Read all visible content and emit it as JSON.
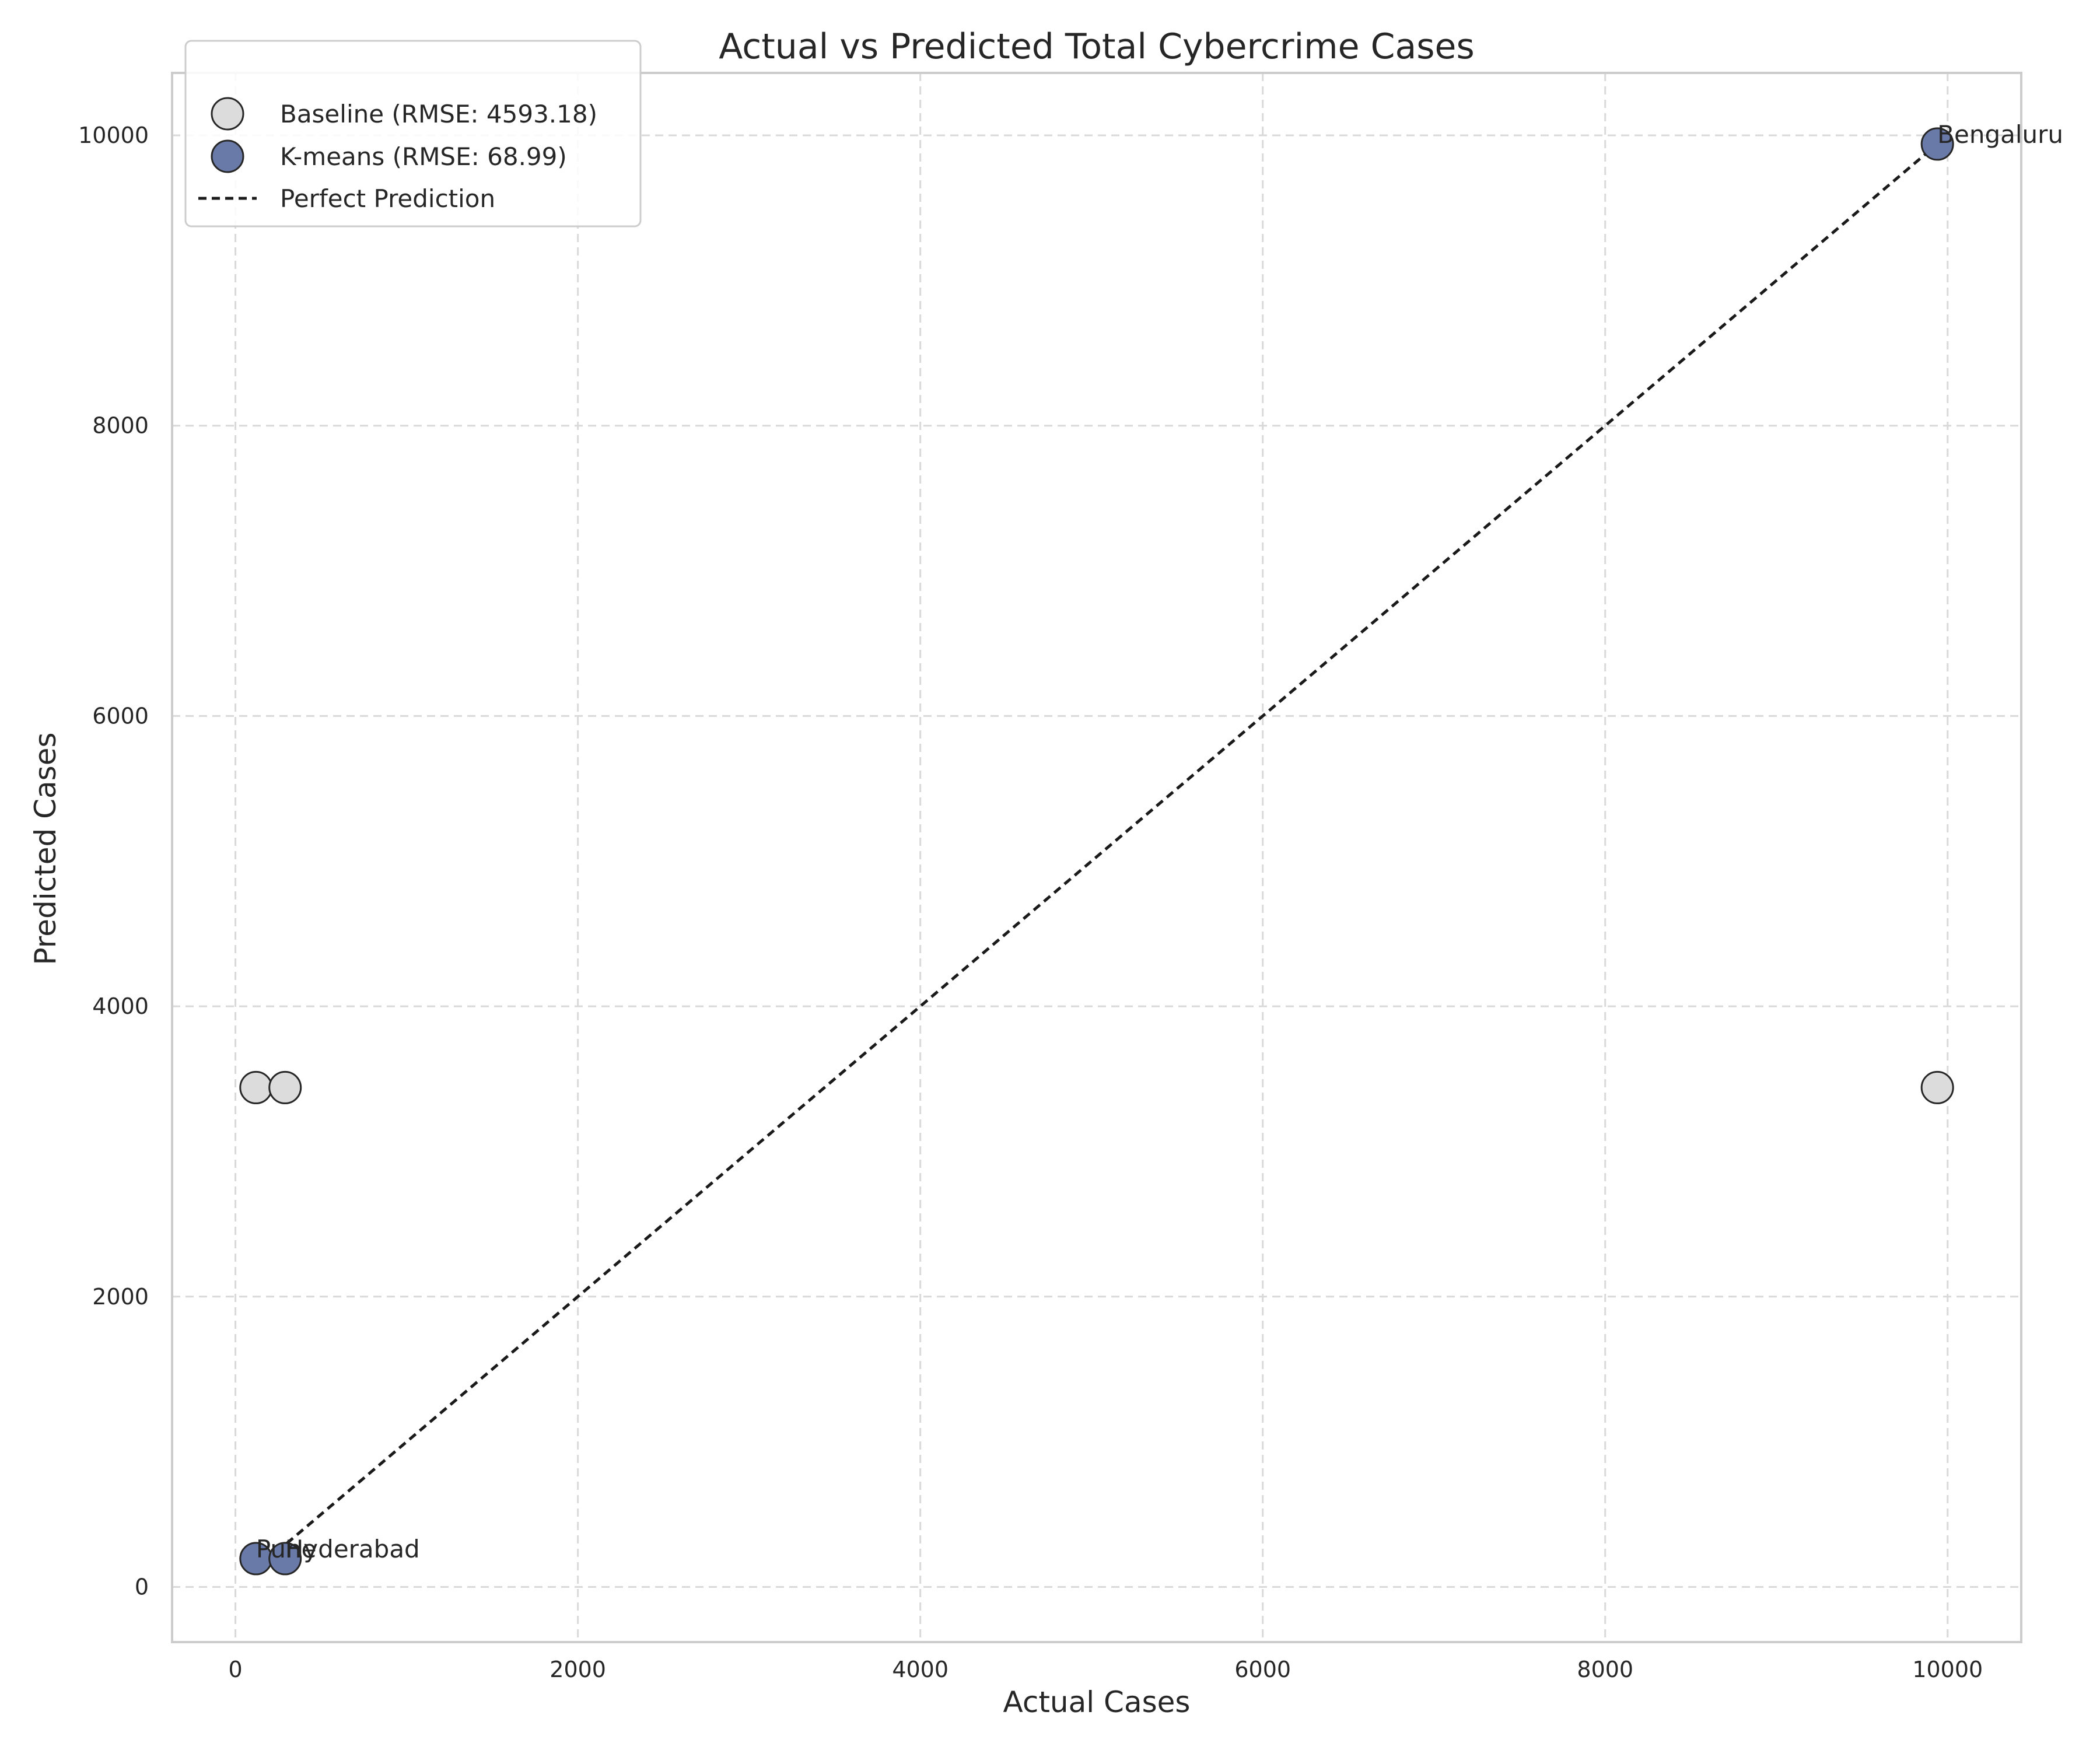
{
  "chart_data": {
    "type": "scatter",
    "title": "Actual vs Predicted Total Cybercrime Cases",
    "xlabel": "Actual Cases",
    "ylabel": "Predicted Cases",
    "xlim": [
      -370,
      10430
    ],
    "ylim": [
      -380,
      10430
    ],
    "xticks": [
      0,
      2000,
      4000,
      6000,
      8000,
      10000
    ],
    "yticks": [
      0,
      2000,
      4000,
      6000,
      8000,
      10000
    ],
    "grid": true,
    "legend_position": "top-left",
    "series": [
      {
        "name": "Baseline (RMSE: 4593.18)",
        "color": "#dcdcdc",
        "points": [
          {
            "x": 120,
            "y": 3440
          },
          {
            "x": 290,
            "y": 3440
          },
          {
            "x": 9940,
            "y": 3440
          }
        ]
      },
      {
        "name": "K-means (RMSE: 68.99)",
        "color": "#6a7aa8",
        "points": [
          {
            "x": 120,
            "y": 195,
            "label": "Pune"
          },
          {
            "x": 290,
            "y": 195,
            "label": "Hyderabad"
          },
          {
            "x": 9940,
            "y": 9940,
            "label": "Bengaluru"
          }
        ]
      }
    ],
    "reference_line": {
      "name": "Perfect Prediction",
      "color": "#1a1a1a",
      "style": "dashed",
      "from": [
        120,
        120
      ],
      "to": [
        9940,
        9940
      ]
    }
  }
}
